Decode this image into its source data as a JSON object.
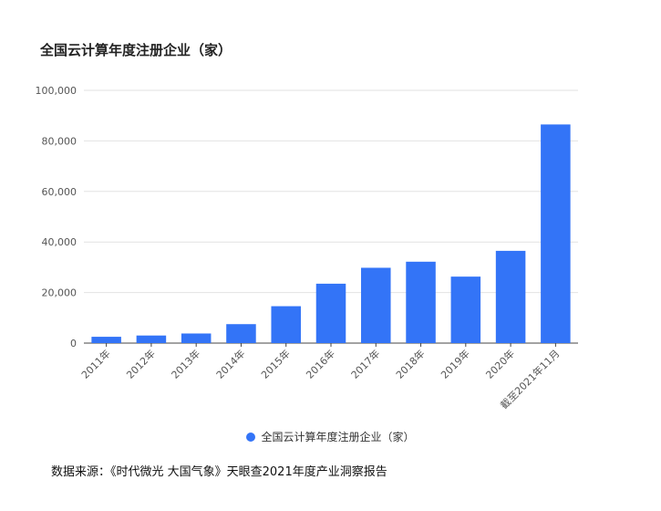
{
  "chart_data": {
    "type": "bar",
    "title": "全国云计算年度注册企业（家）",
    "categories": [
      "2011年",
      "2012年",
      "2013年",
      "2014年",
      "2015年",
      "2016年",
      "2017年",
      "2018年",
      "2019年",
      "2020年",
      "截至2021年11月"
    ],
    "series": [
      {
        "name": "全国云计算年度注册企业（家）",
        "values": [
          2500,
          3000,
          3800,
          7500,
          14600,
          23500,
          29800,
          32200,
          26300,
          36500,
          86500
        ]
      }
    ],
    "ylim": [
      0,
      100000
    ],
    "yticks": [
      "0",
      "20,000",
      "40,000",
      "60,000",
      "80,000",
      "100,000"
    ],
    "grid": true,
    "legend_position": "bottom",
    "color": "#3374f7"
  },
  "source_text": "数据来源：《时代微光 大国气象》天眼查2021年度产业洞察报告"
}
